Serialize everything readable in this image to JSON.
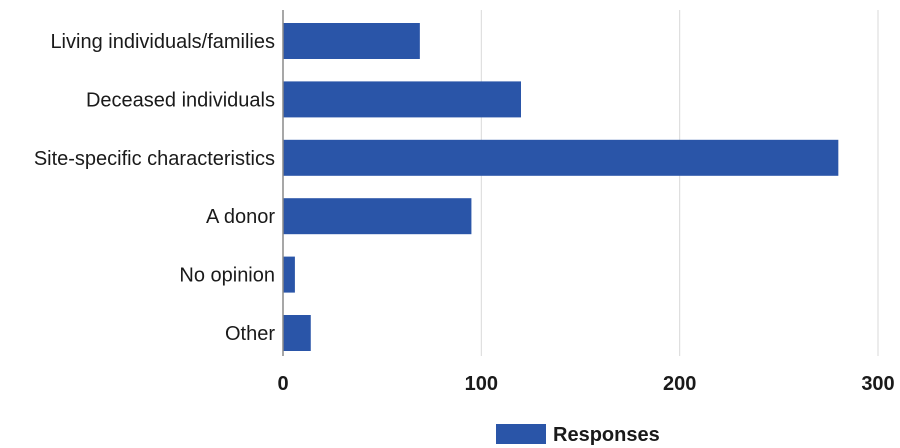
{
  "chart_data": {
    "type": "bar",
    "orientation": "horizontal",
    "categories": [
      "Living individuals/families",
      "Deceased individuals",
      "Site-specific characteristics",
      "A donor",
      "No opinion",
      "Other"
    ],
    "series": [
      {
        "name": "Responses",
        "values": [
          69,
          120,
          280,
          95,
          6,
          14
        ],
        "color": "#2a55a8"
      }
    ],
    "xlim": [
      0,
      300
    ],
    "xticks": [
      0,
      100,
      200,
      300
    ],
    "title": "",
    "xlabel": "",
    "ylabel": "",
    "grid": "vertical",
    "legend": "bottom-center"
  }
}
